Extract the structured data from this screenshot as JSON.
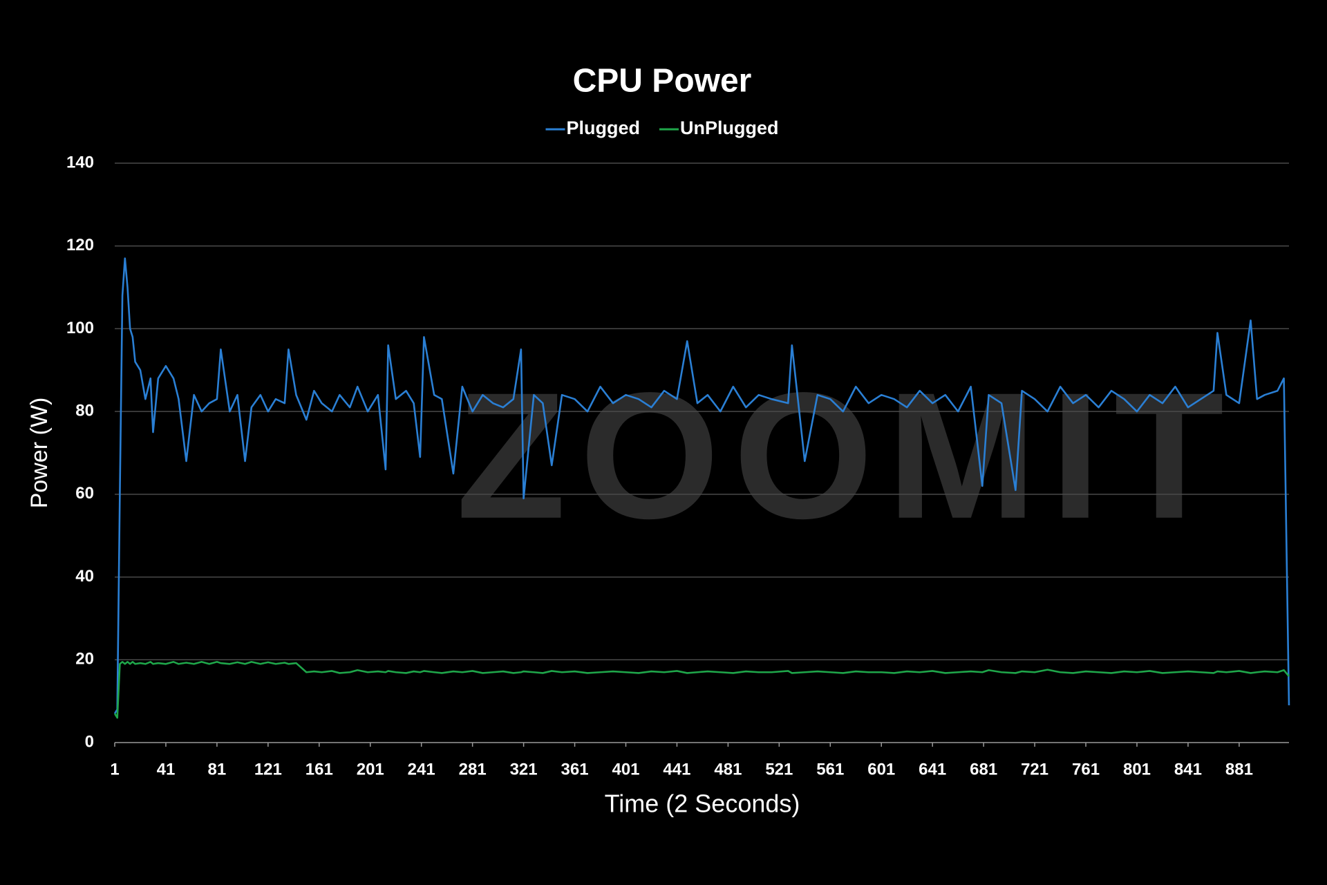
{
  "chart_data": {
    "type": "line",
    "title": "CPU Power",
    "xlabel": "Time (2 Seconds)",
    "ylabel": "Power (W)",
    "watermark": "ZOOMIT",
    "legend": "top",
    "grid": true,
    "xlim": [
      1,
      920
    ],
    "xticks": [
      1,
      41,
      81,
      121,
      161,
      201,
      241,
      281,
      321,
      361,
      401,
      441,
      481,
      521,
      561,
      601,
      641,
      681,
      721,
      761,
      801,
      841,
      881
    ],
    "ylim": [
      0,
      140
    ],
    "yticks": [
      0,
      20,
      40,
      60,
      80,
      100,
      120,
      140
    ],
    "x": [
      1,
      3,
      5,
      7,
      9,
      11,
      13,
      15,
      17,
      21,
      25,
      29,
      31,
      35,
      41,
      47,
      51,
      57,
      63,
      69,
      75,
      81,
      84,
      91,
      97,
      103,
      108,
      115,
      121,
      127,
      134,
      137,
      143,
      151,
      157,
      163,
      171,
      177,
      185,
      191,
      199,
      207,
      213,
      215,
      221,
      229,
      235,
      240,
      243,
      251,
      257,
      266,
      273,
      281,
      289,
      297,
      305,
      313,
      319,
      321,
      329,
      336,
      343,
      351,
      361,
      371,
      381,
      391,
      401,
      411,
      421,
      431,
      441,
      449,
      457,
      465,
      475,
      485,
      495,
      505,
      515,
      528,
      531,
      541,
      551,
      561,
      571,
      581,
      591,
      601,
      611,
      621,
      631,
      641,
      651,
      661,
      671,
      680,
      685,
      695,
      706,
      711,
      721,
      731,
      741,
      751,
      761,
      771,
      781,
      791,
      801,
      811,
      821,
      831,
      841,
      851,
      861,
      864,
      871,
      881,
      890,
      895,
      901,
      911,
      916,
      920
    ],
    "series": [
      {
        "name": "Plugged",
        "color": "#2a7fd4",
        "values": [
          7,
          8,
          60,
          108,
          117,
          110,
          100,
          98,
          92,
          90,
          83,
          88,
          75,
          88,
          91,
          88,
          83,
          68,
          84,
          80,
          82,
          83,
          95,
          80,
          84,
          68,
          81,
          84,
          80,
          83,
          82,
          95,
          84,
          78,
          85,
          82,
          80,
          84,
          81,
          86,
          80,
          84,
          66,
          96,
          83,
          85,
          82,
          69,
          98,
          84,
          83,
          65,
          86,
          80,
          84,
          82,
          81,
          83,
          95,
          59,
          84,
          82,
          67,
          84,
          83,
          80,
          86,
          82,
          84,
          83,
          81,
          85,
          83,
          97,
          82,
          84,
          80,
          86,
          81,
          84,
          83,
          82,
          96,
          68,
          84,
          83,
          80,
          86,
          82,
          84,
          83,
          81,
          85,
          82,
          84,
          80,
          86,
          62,
          84,
          82,
          61,
          85,
          83,
          80,
          86,
          82,
          84,
          81,
          85,
          83,
          80,
          84,
          82,
          86,
          81,
          83,
          85,
          99,
          84,
          82,
          102,
          83,
          84,
          85,
          88,
          9
        ]
      },
      {
        "name": "UnPlugged",
        "color": "#1fa64a",
        "values": [
          7,
          6,
          19,
          19.5,
          19,
          19.5,
          19,
          19.5,
          19,
          19.2,
          19,
          19.5,
          19,
          19.2,
          19,
          19.5,
          19,
          19.3,
          19,
          19.5,
          19,
          19.5,
          19.2,
          19,
          19.4,
          19,
          19.5,
          19,
          19.4,
          19,
          19.3,
          19,
          19.2,
          17,
          17.2,
          17,
          17.3,
          16.8,
          17,
          17.5,
          17,
          17.2,
          17,
          17.3,
          17,
          16.8,
          17.2,
          17,
          17.3,
          17,
          16.8,
          17.2,
          17,
          17.3,
          16.8,
          17,
          17.2,
          16.8,
          17,
          17.2,
          17,
          16.8,
          17.3,
          17,
          17.2,
          16.8,
          17,
          17.2,
          17,
          16.8,
          17.2,
          17,
          17.3,
          16.8,
          17,
          17.2,
          17,
          16.8,
          17.2,
          17,
          17,
          17.3,
          16.8,
          17,
          17.2,
          17,
          16.8,
          17.2,
          17,
          17,
          16.8,
          17.2,
          17,
          17.3,
          16.8,
          17,
          17.2,
          17,
          17.5,
          17,
          16.8,
          17.2,
          17,
          17.6,
          17,
          16.8,
          17.2,
          17,
          16.8,
          17.2,
          17,
          17.3,
          16.8,
          17,
          17.2,
          17,
          16.8,
          17.2,
          17,
          17.3,
          16.8,
          17,
          17.2,
          17,
          17.5,
          16
        ]
      }
    ]
  }
}
